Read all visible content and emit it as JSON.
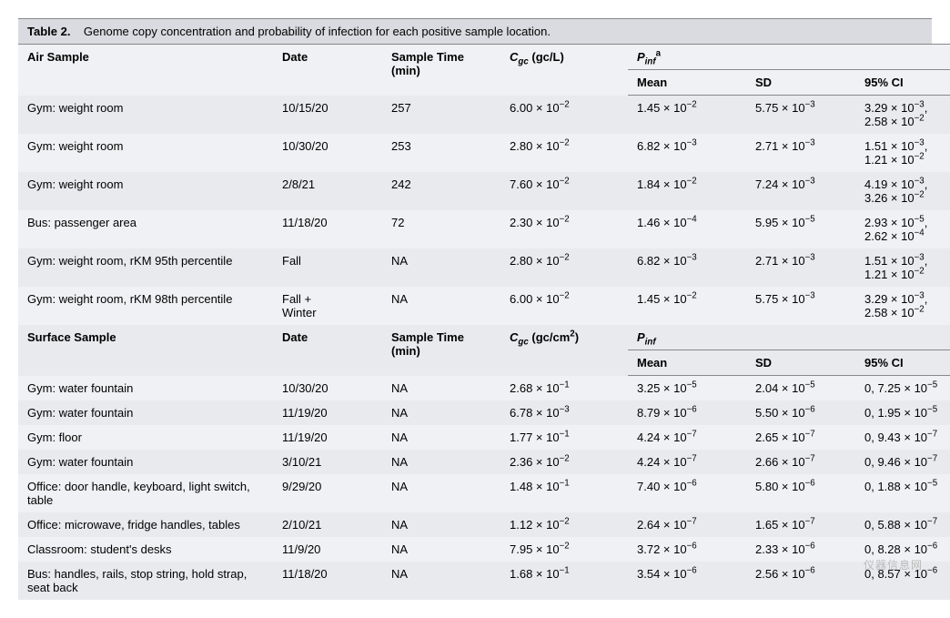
{
  "caption_label": "Table 2.",
  "caption_text": "Genome copy concentration and probability of infection for each positive sample location.",
  "headers": {
    "sample_air": "Air Sample",
    "sample_surface": "Surface Sample",
    "date": "Date",
    "time": "Sample Time (min)",
    "cgc_air_html": "<i>C<sub>gc</sub></i> (gc/L)",
    "cgc_surf_html": "<i>C<sub>gc</sub></i> (gc/cm<sup>2</sup>)",
    "pinf_air_html": "<i>P<sub>inf</sub></i><sup>a</sup>",
    "pinf_surf_html": "<i>P<sub>inf</sub></i>",
    "mean": "Mean",
    "sd": "SD",
    "ci": "95% CI"
  },
  "air_rows": [
    {
      "sample": "Gym: weight room",
      "date": "10/15/20",
      "time": "257",
      "cgc": "6.00 × 10<sup>−2</sup>",
      "mean": "1.45 × 10<sup>−2</sup>",
      "sd": "5.75 × 10<sup>−3</sup>",
      "ci": "3.29 × 10<sup>−3</sup>,<br>2.58 × 10<sup>−2</sup>"
    },
    {
      "sample": "Gym: weight room",
      "date": "10/30/20",
      "time": "253",
      "cgc": "2.80 × 10<sup>−2</sup>",
      "mean": "6.82 × 10<sup>−3</sup>",
      "sd": "2.71 × 10<sup>−3</sup>",
      "ci": "1.51 × 10<sup>−3</sup>,<br>1.21 × 10<sup>−2</sup>"
    },
    {
      "sample": "Gym: weight room",
      "date": "2/8/21",
      "time": "242",
      "cgc": "7.60 × 10<sup>−2</sup>",
      "mean": "1.84 × 10<sup>−2</sup>",
      "sd": "7.24 × 10<sup>−3</sup>",
      "ci": "4.19 × 10<sup>−3</sup>,<br>3.26 × 10<sup>−2</sup>"
    },
    {
      "sample": "Bus: passenger area",
      "date": "11/18/20",
      "time": "72",
      "cgc": "2.30 × 10<sup>−2</sup>",
      "mean": "1.46 × 10<sup>−4</sup>",
      "sd": "5.95 × 10<sup>−5</sup>",
      "ci": "2.93 × 10<sup>−5</sup>,<br>2.62 × 10<sup>−4</sup>"
    },
    {
      "sample": "Gym: weight room, rKM 95th percentile",
      "date": "Fall",
      "time": "NA",
      "cgc": "2.80 × 10<sup>−2</sup>",
      "mean": "6.82 × 10<sup>−3</sup>",
      "sd": "2.71 × 10<sup>−3</sup>",
      "ci": "1.51 × 10<sup>−3</sup>,<br>1.21 × 10<sup>−2</sup>"
    },
    {
      "sample": "Gym: weight room, rKM 98th percentile",
      "date": "Fall +<br>Winter",
      "time": "NA",
      "cgc": "6.00 × 10<sup>−2</sup>",
      "mean": "1.45 × 10<sup>−2</sup>",
      "sd": "5.75 × 10<sup>−3</sup>",
      "ci": "3.29 × 10<sup>−3</sup>,<br>2.58 × 10<sup>−2</sup>"
    }
  ],
  "surf_rows": [
    {
      "sample": "Gym: water fountain",
      "date": "10/30/20",
      "time": "NA",
      "cgc": "2.68 × 10<sup>−1</sup>",
      "mean": "3.25 × 10<sup>−5</sup>",
      "sd": "2.04 × 10<sup>−5</sup>",
      "ci": "0, 7.25 × 10<sup>−5</sup>"
    },
    {
      "sample": "Gym: water fountain",
      "date": "11/19/20",
      "time": "NA",
      "cgc": "6.78 × 10<sup>−3</sup>",
      "mean": "8.79 × 10<sup>−6</sup>",
      "sd": "5.50 × 10<sup>−6</sup>",
      "ci": "0, 1.95 × 10<sup>−5</sup>"
    },
    {
      "sample": "Gym: floor",
      "date": "11/19/20",
      "time": "NA",
      "cgc": "1.77 × 10<sup>−1</sup>",
      "mean": "4.24 × 10<sup>−7</sup>",
      "sd": "2.65 × 10<sup>−7</sup>",
      "ci": "0, 9.43 × 10<sup>−7</sup>"
    },
    {
      "sample": "Gym: water fountain",
      "date": "3/10/21",
      "time": "NA",
      "cgc": "2.36 × 10<sup>−2</sup>",
      "mean": "4.24 × 10<sup>−7</sup>",
      "sd": "2.66 × 10<sup>−7</sup>",
      "ci": "0, 9.46 × 10<sup>−7</sup>"
    },
    {
      "sample": "Office: door handle, keyboard, light switch, table",
      "date": "9/29/20",
      "time": "NA",
      "cgc": "1.48 × 10<sup>−1</sup>",
      "mean": "7.40 × 10<sup>−6</sup>",
      "sd": "5.80 × 10<sup>−6</sup>",
      "ci": "0, 1.88 × 10<sup>−5</sup>"
    },
    {
      "sample": "Office: microwave, fridge handles, tables",
      "date": "2/10/21",
      "time": "NA",
      "cgc": "1.12 × 10<sup>−2</sup>",
      "mean": "2.64 × 10<sup>−7</sup>",
      "sd": "1.65 × 10<sup>−7</sup>",
      "ci": "0, 5.88 × 10<sup>−7</sup>"
    },
    {
      "sample": "Classroom: student's desks",
      "date": "11/9/20",
      "time": "NA",
      "cgc": "7.95 × 10<sup>−2</sup>",
      "mean": "3.72 × 10<sup>−6</sup>",
      "sd": "2.33 × 10<sup>−6</sup>",
      "ci": "0, 8.28 × 10<sup>−6</sup>"
    },
    {
      "sample": "Bus: handles, rails, stop string, hold strap, seat back",
      "date": "11/18/20",
      "time": "NA",
      "cgc": "1.68 × 10<sup>−1</sup>",
      "mean": "3.54 × 10<sup>−6</sup>",
      "sd": "2.56 × 10<sup>−6</sup>",
      "ci": "0, 8.57 × 10<sup>−6</sup>"
    }
  ],
  "watermark": "仪器信息网"
}
